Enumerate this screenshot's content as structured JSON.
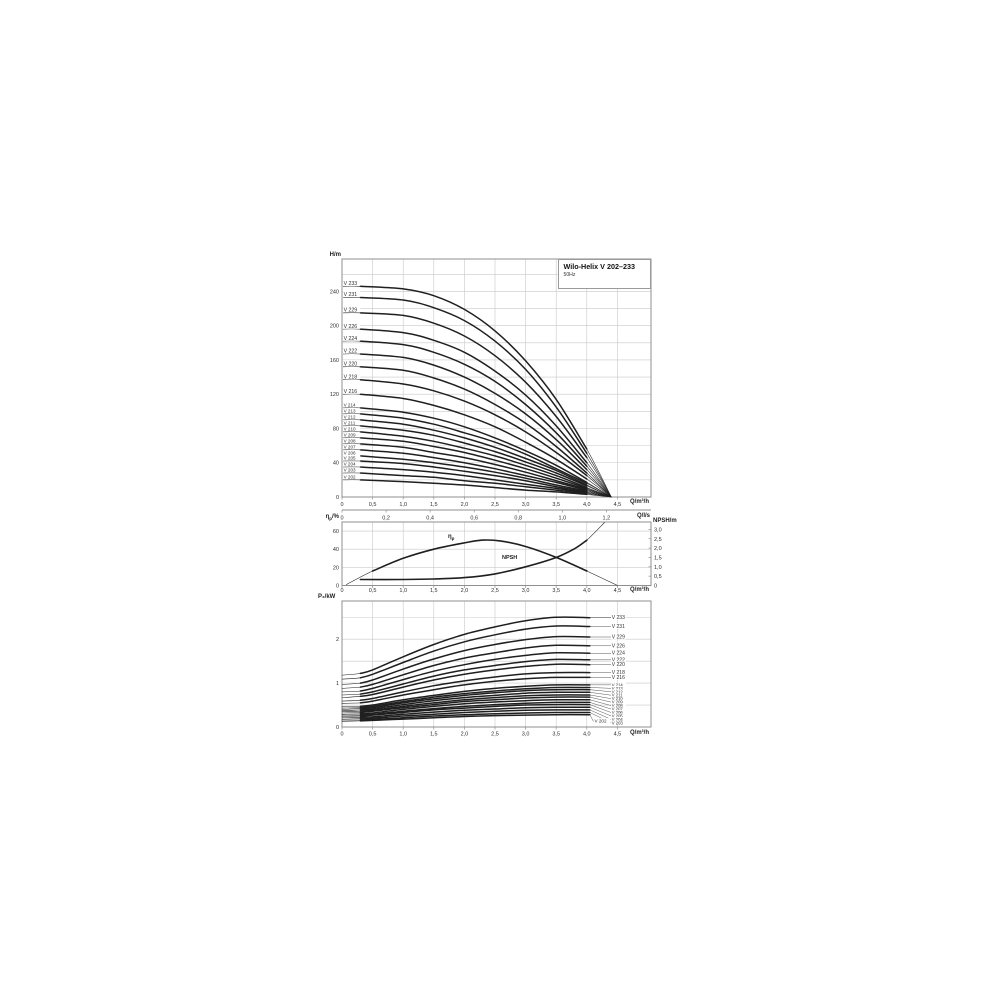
{
  "title_box": {
    "title": "Wilo-Helix V 202–233",
    "subtitle": "50Hz"
  },
  "labels": {
    "head_y": "H/m",
    "q_m3h": "Q/m³/h",
    "q_ls": "Q/l/s",
    "npsh_axis": "NPSH/m",
    "power_y": "P₂/kW",
    "eta_base": "η",
    "eta_sub": "p",
    "eta_rest": "/%",
    "npsh_curve": "NPSH"
  },
  "chart_data": [
    {
      "id": "head",
      "type": "line",
      "ylabel": "H/m",
      "xlabel": "Q/m³/h",
      "x2label": "Q/l/s",
      "xlim": [
        0,
        5.05
      ],
      "ylim": [
        0,
        278
      ],
      "grid": true,
      "x_tick_values": [
        0,
        0.5,
        1,
        1.5,
        2,
        2.5,
        3,
        3.5,
        4,
        4.5
      ],
      "x_tick_labels": [
        "0",
        "0,5",
        "1,0",
        "1,5",
        "2,0",
        "2,5",
        "3,0",
        "3,5",
        "4,0",
        "4,5"
      ],
      "x2_tick_values": [
        0,
        0.2,
        0.4,
        0.6,
        0.8,
        1.0,
        1.2
      ],
      "x2_tick_labels": [
        "0",
        "0,2",
        "0,4",
        "0,6",
        "0,8",
        "1,0",
        "1,2"
      ],
      "y_tick_values": [
        0,
        40,
        80,
        120,
        160,
        200,
        240
      ],
      "y_tick_labels": [
        "0",
        "40",
        "80",
        "120",
        "160",
        "200",
        "240"
      ],
      "q": [
        0.3,
        1,
        1.5,
        2,
        2.5,
        3,
        3.5,
        4,
        4.4
      ],
      "series": [
        {
          "label": "V 233",
          "values": [
            246,
            243,
            235,
            219,
            194,
            159,
            114,
            56,
            0
          ]
        },
        {
          "label": "V 231",
          "values": [
            233,
            230,
            221,
            206,
            182,
            149,
            105,
            51,
            0
          ]
        },
        {
          "label": "V 229",
          "values": [
            215,
            212,
            203,
            188,
            165,
            134,
            94,
            46,
            0
          ]
        },
        {
          "label": "V 226",
          "values": [
            196,
            192,
            183,
            169,
            147,
            119,
            83,
            40,
            0
          ]
        },
        {
          "label": "V 224",
          "values": [
            182,
            178,
            169,
            155,
            135,
            108,
            75,
            36,
            0
          ]
        },
        {
          "label": "V 222",
          "values": [
            167,
            163,
            154,
            140,
            121,
            97,
            67,
            32,
            0
          ]
        },
        {
          "label": "V 220",
          "values": [
            152,
            148,
            139,
            126,
            108,
            86,
            59,
            28,
            0
          ]
        },
        {
          "label": "V 218",
          "values": [
            137,
            132,
            124,
            112,
            96,
            76,
            52,
            25,
            0
          ]
        },
        {
          "label": "V 216",
          "values": [
            120,
            115,
            107,
            96,
            82,
            64,
            44,
            21,
            0
          ]
        },
        {
          "label": "V 214",
          "values": [
            104,
            99,
            92,
            82,
            69,
            54,
            37,
            17,
            0
          ]
        },
        {
          "label": "V 213",
          "values": [
            97,
            92,
            85,
            75,
            64,
            50,
            33,
            16,
            0
          ]
        },
        {
          "label": "V 212",
          "values": [
            90,
            85,
            78,
            69,
            58,
            45,
            31,
            14,
            0
          ]
        },
        {
          "label": "V 211",
          "values": [
            83,
            78,
            72,
            63,
            53,
            41,
            28,
            13,
            0
          ]
        },
        {
          "label": "V 210",
          "values": [
            76,
            71,
            65,
            57,
            48,
            37,
            25,
            11,
            0
          ]
        },
        {
          "label": "V 209",
          "values": [
            69,
            65,
            59,
            52,
            43,
            33,
            22,
            10,
            0
          ]
        },
        {
          "label": "V 208",
          "values": [
            62,
            58,
            52,
            46,
            38,
            29,
            19,
            9,
            0
          ]
        },
        {
          "label": "V 207",
          "values": [
            55,
            51,
            46,
            40,
            33,
            25,
            17,
            8,
            0
          ]
        },
        {
          "label": "V 206",
          "values": [
            48,
            44,
            40,
            35,
            29,
            22,
            14,
            7,
            0
          ]
        },
        {
          "label": "V 205",
          "values": [
            42,
            39,
            35,
            30,
            25,
            19,
            12,
            6,
            0
          ]
        },
        {
          "label": "V 204",
          "values": [
            35,
            32,
            29,
            25,
            20,
            15,
            10,
            5,
            0
          ]
        },
        {
          "label": "V 203",
          "values": [
            28,
            25,
            23,
            19,
            16,
            12,
            8,
            4,
            0
          ]
        },
        {
          "label": "V 202",
          "values": [
            20,
            18,
            16,
            14,
            11,
            8,
            6,
            3,
            0
          ]
        }
      ]
    },
    {
      "id": "efficiency-npsh",
      "type": "line",
      "ylabel_left": "ηp/%",
      "ylabel_right": "NPSH/m",
      "xlabel": "Q/m³/h",
      "xlim": [
        0,
        5.05
      ],
      "ylim_left": [
        0,
        70
      ],
      "ylim_right": [
        0,
        3.4
      ],
      "grid": true,
      "x_tick_values": [
        0,
        0.5,
        1,
        1.5,
        2,
        2.5,
        3,
        3.5,
        4,
        4.5
      ],
      "x_tick_labels": [
        "0",
        "0,5",
        "1,0",
        "1,5",
        "2,0",
        "2,5",
        "3,0",
        "3,5",
        "4,0",
        "4,5"
      ],
      "yl_tick_values": [
        0,
        20,
        40,
        60
      ],
      "yl_tick_labels": [
        "0",
        "20",
        "40",
        "60"
      ],
      "yr_tick_values": [
        0,
        0.5,
        1,
        1.5,
        2,
        2.5,
        3
      ],
      "yr_tick_labels": [
        "0",
        "0,5",
        "1,0",
        "1,5",
        "2,0",
        "2,5",
        "3,0"
      ],
      "eta": {
        "label": "ηp",
        "q": [
          0.07,
          0.5,
          1,
          1.5,
          2,
          2.3,
          2.6,
          3,
          3.5,
          4,
          4.5
        ],
        "values": [
          1,
          16,
          30,
          40,
          47,
          50,
          49,
          43,
          31,
          16,
          0
        ]
      },
      "npsh": {
        "label": "NPSH",
        "q": [
          0.3,
          1,
          1.5,
          2,
          2.5,
          3,
          3.5,
          3.8,
          4,
          4.29
        ],
        "values": [
          0.32,
          0.32,
          0.35,
          0.42,
          0.62,
          1.0,
          1.5,
          1.97,
          2.42,
          3.37
        ]
      }
    },
    {
      "id": "power",
      "type": "line",
      "ylabel": "P₂/kW",
      "xlabel": "Q/m³/h",
      "xlim": [
        0,
        5.05
      ],
      "ylim": [
        0,
        2.87
      ],
      "grid": true,
      "x_tick_values": [
        0,
        0.5,
        1,
        1.5,
        2,
        2.5,
        3,
        3.5,
        4,
        4.5
      ],
      "x_tick_labels": [
        "0",
        "0,5",
        "1,0",
        "1,5",
        "2,0",
        "2,5",
        "3,0",
        "3,5",
        "4,0",
        "4,5"
      ],
      "y_tick_values": [
        0,
        1,
        2
      ],
      "y_tick_labels": [
        "0",
        "1",
        "2"
      ],
      "q": [
        0,
        0.3,
        0.5,
        1,
        1.5,
        2,
        2.5,
        3,
        3.5,
        4.05
      ],
      "series": [
        {
          "label": "V 233",
          "values": [
            1.18,
            1.22,
            1.3,
            1.6,
            1.88,
            2.11,
            2.28,
            2.42,
            2.5,
            2.49
          ]
        },
        {
          "label": "V 231",
          "values": [
            1.09,
            1.12,
            1.2,
            1.47,
            1.73,
            1.94,
            2.1,
            2.23,
            2.3,
            2.29
          ]
        },
        {
          "label": "V 229",
          "values": [
            0.97,
            1.0,
            1.07,
            1.32,
            1.55,
            1.74,
            1.88,
            1.99,
            2.06,
            2.05
          ]
        },
        {
          "label": "V 226",
          "values": [
            0.88,
            0.91,
            0.97,
            1.19,
            1.4,
            1.57,
            1.69,
            1.8,
            1.86,
            1.85
          ]
        },
        {
          "label": "V 224",
          "values": [
            0.8,
            0.82,
            0.88,
            1.08,
            1.27,
            1.42,
            1.54,
            1.63,
            1.69,
            1.68
          ]
        },
        {
          "label": "V 222",
          "values": [
            0.73,
            0.75,
            0.8,
            0.98,
            1.16,
            1.3,
            1.4,
            1.49,
            1.54,
            1.53
          ]
        },
        {
          "label": "V 220",
          "values": [
            0.67,
            0.7,
            0.74,
            0.91,
            1.07,
            1.2,
            1.3,
            1.38,
            1.43,
            1.42
          ]
        },
        {
          "label": "V 218",
          "values": [
            0.59,
            0.61,
            0.65,
            0.8,
            0.94,
            1.05,
            1.14,
            1.21,
            1.24,
            1.24
          ]
        },
        {
          "label": "V 216",
          "values": [
            0.54,
            0.55,
            0.59,
            0.73,
            0.85,
            0.96,
            1.04,
            1.1,
            1.13,
            1.13
          ]
        },
        {
          "label": "V 214",
          "values": [
            0.46,
            0.47,
            0.5,
            0.62,
            0.72,
            0.81,
            0.88,
            0.93,
            0.96,
            0.96
          ]
        },
        {
          "label": "V 213",
          "values": [
            0.43,
            0.44,
            0.47,
            0.58,
            0.68,
            0.76,
            0.82,
            0.87,
            0.9,
            0.9
          ]
        },
        {
          "label": "V 212",
          "values": [
            0.4,
            0.42,
            0.44,
            0.55,
            0.64,
            0.72,
            0.78,
            0.83,
            0.85,
            0.85
          ]
        },
        {
          "label": "V 211",
          "values": [
            0.37,
            0.39,
            0.41,
            0.51,
            0.6,
            0.67,
            0.72,
            0.77,
            0.79,
            0.79
          ]
        },
        {
          "label": "V 210",
          "values": [
            0.35,
            0.36,
            0.38,
            0.47,
            0.55,
            0.62,
            0.67,
            0.71,
            0.73,
            0.73
          ]
        },
        {
          "label": "V 209",
          "values": [
            0.32,
            0.33,
            0.36,
            0.44,
            0.51,
            0.58,
            0.62,
            0.66,
            0.68,
            0.68
          ]
        },
        {
          "label": "V 208",
          "values": [
            0.29,
            0.3,
            0.32,
            0.4,
            0.47,
            0.53,
            0.57,
            0.6,
            0.62,
            0.62
          ]
        },
        {
          "label": "V 207",
          "values": [
            0.27,
            0.27,
            0.29,
            0.36,
            0.42,
            0.47,
            0.51,
            0.54,
            0.56,
            0.56
          ]
        },
        {
          "label": "V 206",
          "values": [
            0.24,
            0.25,
            0.27,
            0.33,
            0.39,
            0.43,
            0.47,
            0.5,
            0.51,
            0.51
          ]
        },
        {
          "label": "V 205",
          "values": [
            0.21,
            0.22,
            0.23,
            0.29,
            0.34,
            0.38,
            0.41,
            0.44,
            0.45,
            0.45
          ]
        },
        {
          "label": "V 204",
          "values": [
            0.18,
            0.19,
            0.2,
            0.25,
            0.29,
            0.33,
            0.36,
            0.38,
            0.39,
            0.39
          ]
        },
        {
          "label": "V 203",
          "values": [
            0.16,
            0.16,
            0.17,
            0.21,
            0.25,
            0.28,
            0.3,
            0.32,
            0.33,
            0.33
          ]
        },
        {
          "label": "V 202",
          "values": [
            0.13,
            0.14,
            0.15,
            0.18,
            0.21,
            0.24,
            0.26,
            0.27,
            0.28,
            0.28
          ],
          "inside_label": true
        }
      ]
    }
  ],
  "colors": {
    "curve": "#1f1f1f",
    "grid": "#c9c9c9",
    "frame": "#8f8f8f",
    "text": "#2e2e2e"
  }
}
